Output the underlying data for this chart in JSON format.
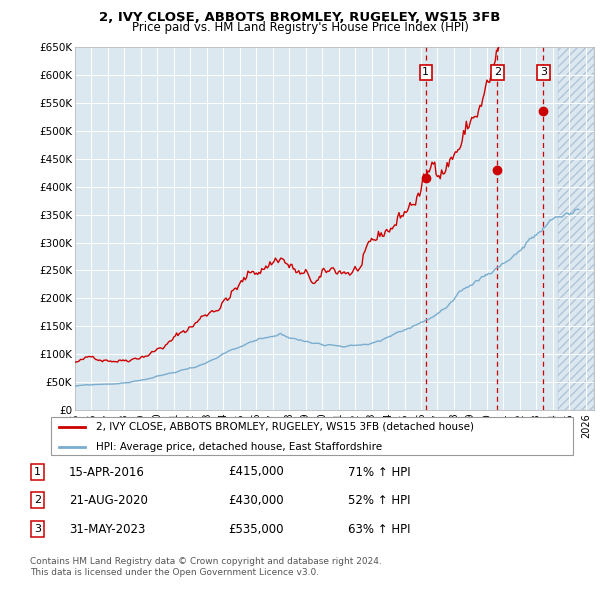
{
  "title1": "2, IVY CLOSE, ABBOTS BROMLEY, RUGELEY, WS15 3FB",
  "title2": "Price paid vs. HM Land Registry's House Price Index (HPI)",
  "ylabel_ticks": [
    "£0",
    "£50K",
    "£100K",
    "£150K",
    "£200K",
    "£250K",
    "£300K",
    "£350K",
    "£400K",
    "£450K",
    "£500K",
    "£550K",
    "£600K",
    "£650K"
  ],
  "ytick_vals": [
    0,
    50000,
    100000,
    150000,
    200000,
    250000,
    300000,
    350000,
    400000,
    450000,
    500000,
    550000,
    600000,
    650000
  ],
  "xlim": [
    1995.0,
    2026.5
  ],
  "ylim": [
    0,
    650000
  ],
  "sale_dates": [
    2016.29,
    2020.64,
    2023.42
  ],
  "sale_prices": [
    415000,
    430000,
    535000
  ],
  "sale_labels": [
    "1",
    "2",
    "3"
  ],
  "legend_red": "2, IVY CLOSE, ABBOTS BROMLEY, RUGELEY, WS15 3FB (detached house)",
  "legend_blue": "HPI: Average price, detached house, East Staffordshire",
  "table_rows": [
    [
      "1",
      "15-APR-2016",
      "£415,000",
      "71% ↑ HPI"
    ],
    [
      "2",
      "21-AUG-2020",
      "£430,000",
      "52% ↑ HPI"
    ],
    [
      "3",
      "31-MAY-2023",
      "£535,000",
      "63% ↑ HPI"
    ]
  ],
  "footnote1": "Contains HM Land Registry data © Crown copyright and database right 2024.",
  "footnote2": "This data is licensed under the Open Government Licence v3.0.",
  "red_color": "#cc0000",
  "blue_color": "#7aadcf",
  "dashed_color": "#cc0000",
  "grid_color": "#c8d8e8",
  "chart_bg": "#dce8f0",
  "bg_color": "#ffffff",
  "hatch_start": 2024.3
}
